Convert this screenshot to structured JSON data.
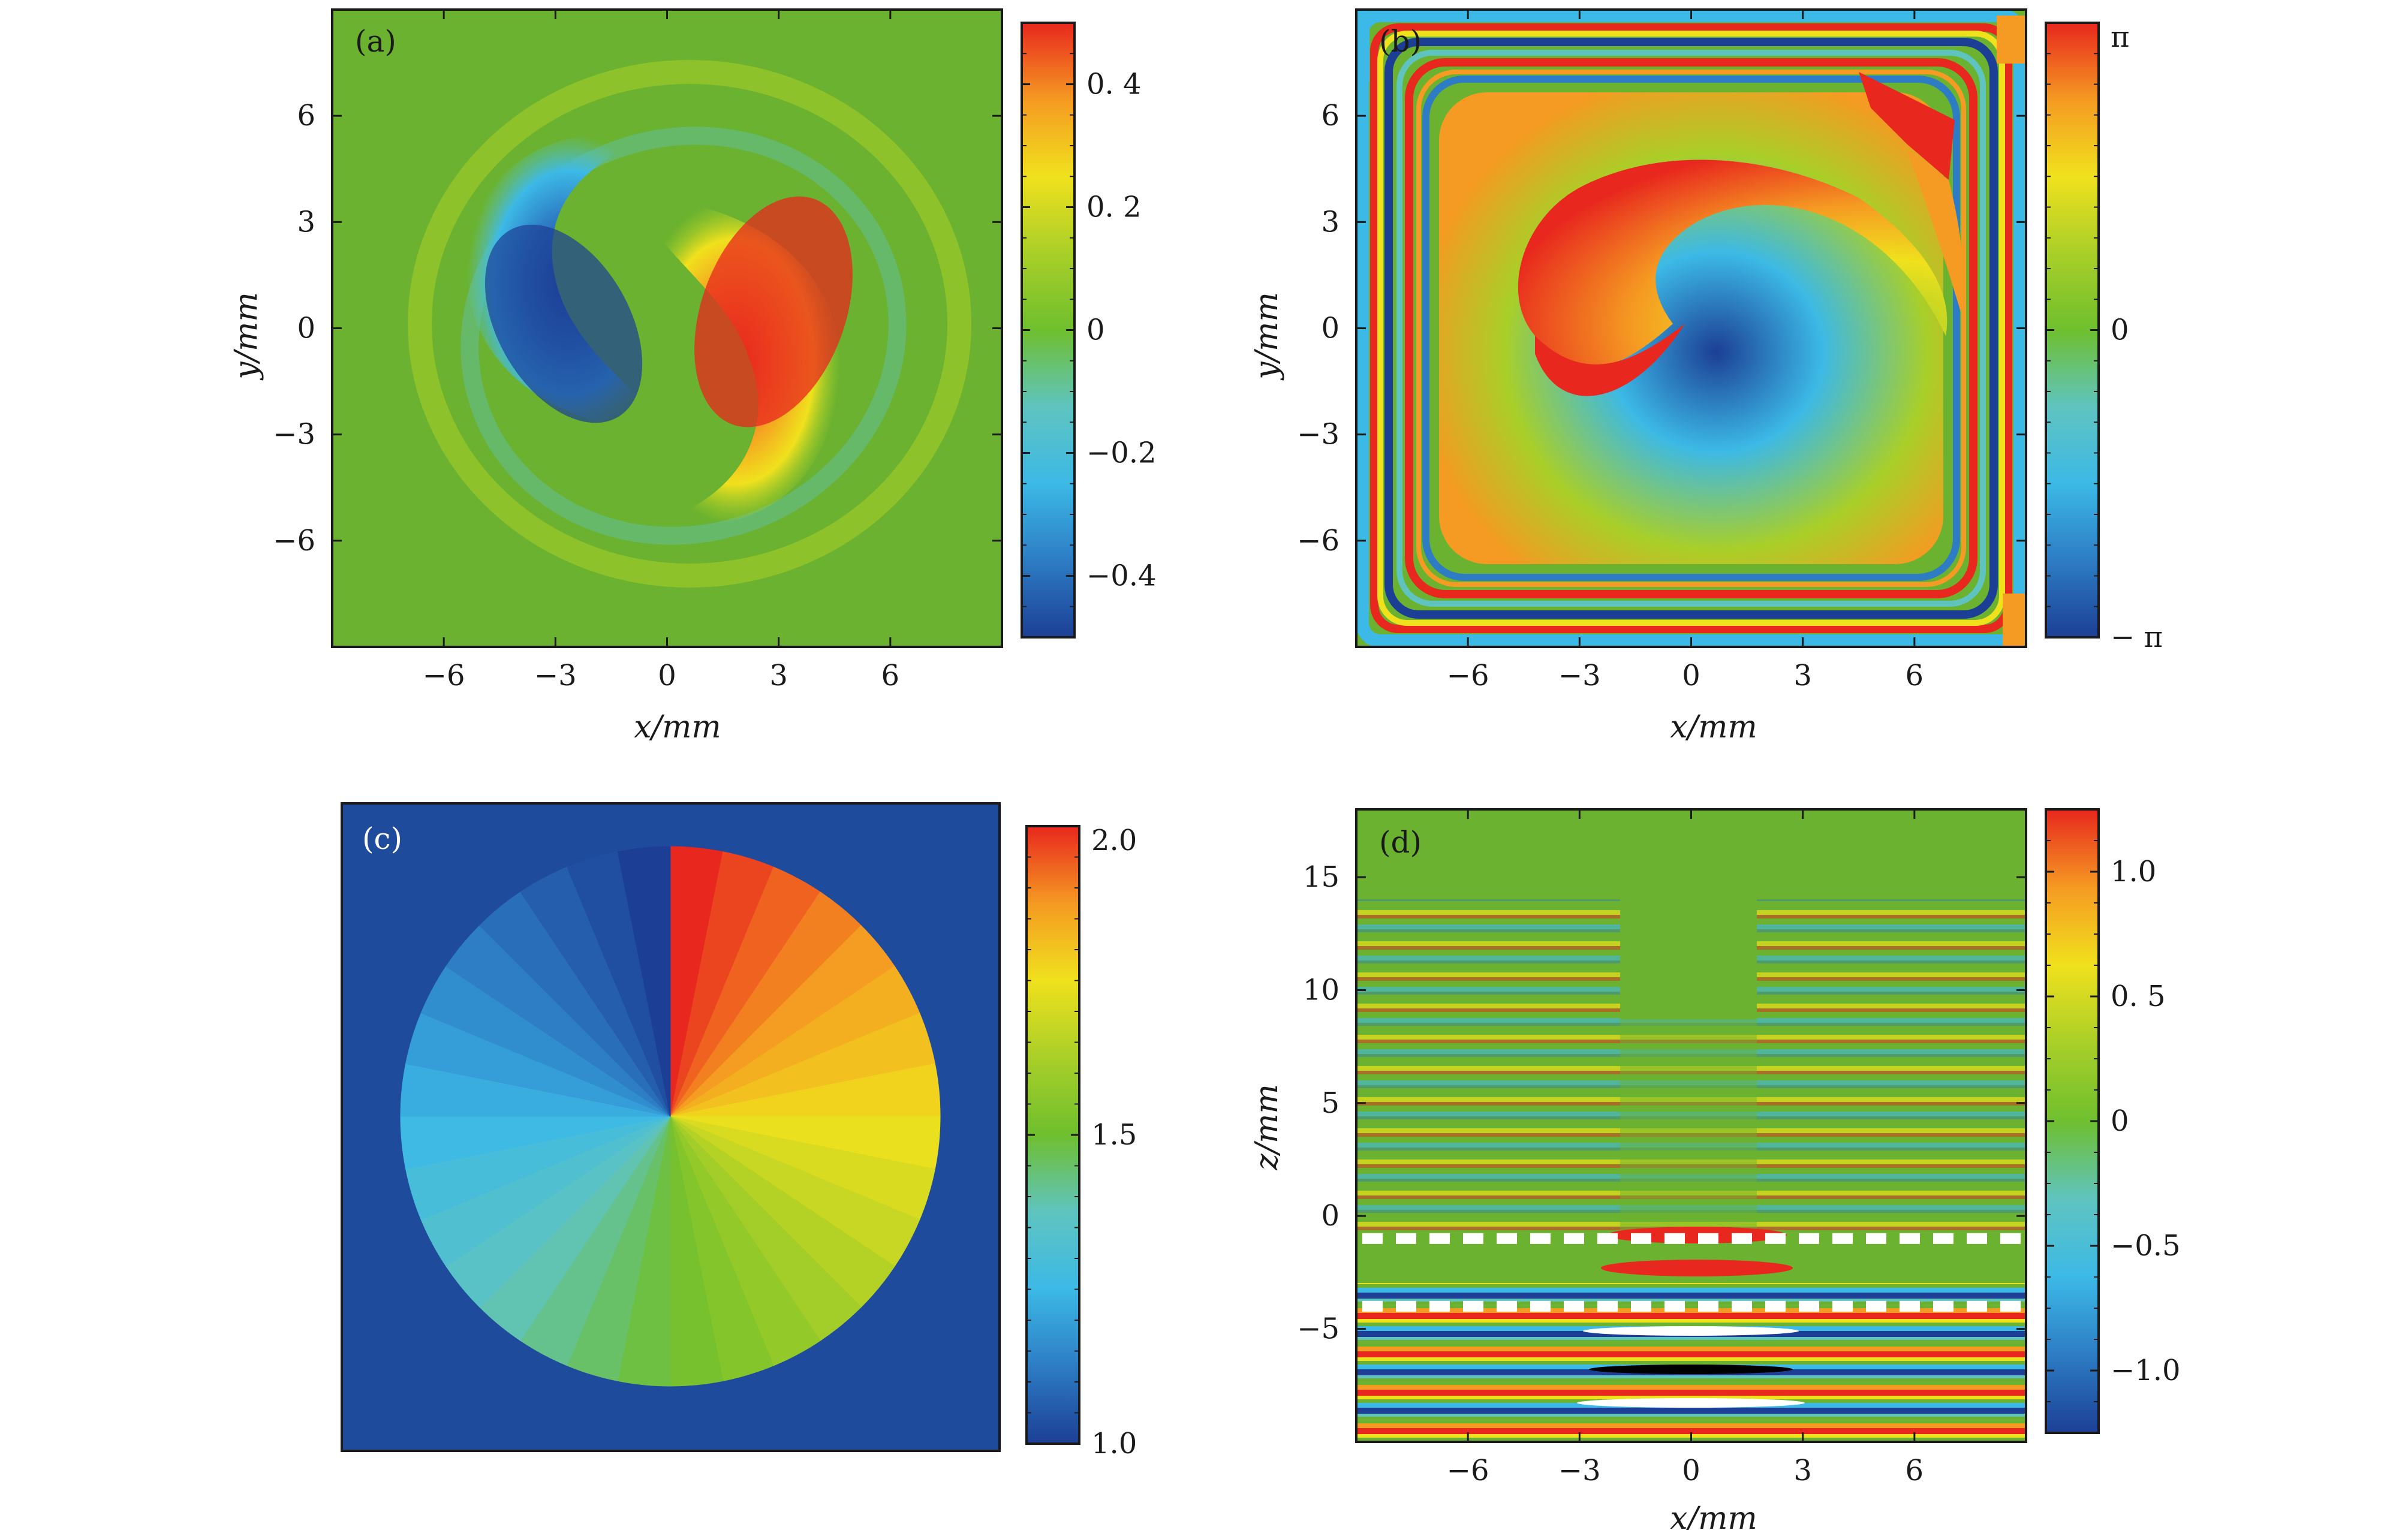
{
  "chart_data": [
    {
      "type": "heatmap",
      "panel_label": "(a)",
      "xlabel": "x/mm",
      "ylabel": "y/mm",
      "xlim": [
        -9,
        9
      ],
      "ylim": [
        -9,
        9
      ],
      "xticks": [
        -6,
        -3,
        0,
        3,
        6
      ],
      "xtick_labels": [
        "−6",
        "−3",
        "0",
        "3",
        "6"
      ],
      "yticks": [
        6,
        3,
        0,
        -3,
        -6
      ],
      "ytick_labels": [
        "6",
        "3",
        "0",
        "−3",
        "−6"
      ],
      "colorbar": {
        "range": [
          -0.5,
          0.5
        ],
        "ticks": [
          0.4,
          0.2,
          0,
          -0.2,
          -0.4
        ],
        "tick_labels": [
          "0. 4",
          "0. 2",
          "0",
          "−0.2",
          "−0.4"
        ]
      }
    },
    {
      "type": "heatmap",
      "panel_label": "(b)",
      "xlabel": "x/mm",
      "ylabel": "y/mm",
      "xlim": [
        -9,
        9
      ],
      "ylim": [
        -9,
        9
      ],
      "xticks": [
        -6,
        -3,
        0,
        3,
        6
      ],
      "xtick_labels": [
        "−6",
        "−3",
        "0",
        "3",
        "6"
      ],
      "yticks": [
        6,
        3,
        0,
        -3,
        -6
      ],
      "ytick_labels": [
        "6",
        "3",
        "0",
        "−3",
        "−6"
      ],
      "colorbar": {
        "range": [
          -3.1416,
          3.1416
        ],
        "ticks": [
          3.1416,
          0,
          -3.1416
        ],
        "tick_labels": [
          "π",
          "0",
          "− π"
        ]
      }
    },
    {
      "type": "heatmap",
      "panel_label": "(c)",
      "xlabel": "",
      "ylabel": "",
      "colorbar": {
        "range": [
          1.0,
          2.0
        ],
        "ticks": [
          2.0,
          1.5,
          1.0
        ],
        "tick_labels": [
          "2.0",
          "1.5",
          "1.0"
        ]
      }
    },
    {
      "type": "heatmap",
      "panel_label": "(d)",
      "xlabel": "x/mm",
      "ylabel": "z/mm",
      "xlim": [
        -9,
        9
      ],
      "ylim": [
        -10,
        18
      ],
      "xticks": [
        -6,
        -3,
        0,
        3,
        6
      ],
      "xtick_labels": [
        "−6",
        "−3",
        "0",
        "3",
        "6"
      ],
      "yticks": [
        15,
        10,
        5,
        0,
        -5
      ],
      "ytick_labels": [
        "15",
        "10",
        "5",
        "0",
        "−5"
      ],
      "dashed_lines_z": [
        -1,
        -4
      ],
      "colorbar": {
        "range": [
          -1.25,
          1.25
        ],
        "ticks": [
          1.0,
          0.5,
          0,
          -0.5,
          -1.0
        ],
        "tick_labels": [
          "1.0",
          "0. 5",
          "0",
          "−0.5",
          "−1.0"
        ]
      }
    }
  ],
  "colors": {
    "jet": [
      "#1c3f95",
      "#2d7cc4",
      "#3cb9e6",
      "#5fc4c0",
      "#6fbf2e",
      "#a9cf28",
      "#f0e11d",
      "#f59a22",
      "#e8271e"
    ],
    "background_green": "#6ab22f",
    "dark_blue": "#1f4b9c"
  }
}
